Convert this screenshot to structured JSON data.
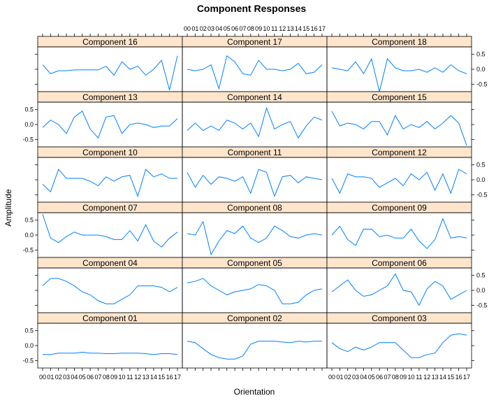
{
  "chart_data": {
    "type": "line",
    "title": "Component Responses",
    "xlabel": "Orientation",
    "ylabel": "Amplitude",
    "x": [
      "00",
      "01",
      "02",
      "03",
      "04",
      "05",
      "06",
      "07",
      "08",
      "09",
      "10",
      "11",
      "12",
      "13",
      "14",
      "15",
      "16",
      "17"
    ],
    "ylim": [
      -0.75,
      0.75
    ],
    "yticks": [
      -0.5,
      0.0,
      0.5
    ],
    "ytick_labels": [
      "-0.5",
      "0.0",
      "0.5"
    ],
    "layout_grid": "3 columns x 6 rows",
    "strip_color": "#ffe5cc",
    "line_color": "#0080ff",
    "series": [
      {
        "name": "Component 16",
        "values": [
          0.15,
          -0.15,
          -0.05,
          -0.05,
          -0.02,
          -0.02,
          -0.02,
          -0.02,
          0.1,
          -0.2,
          0.25,
          0.0,
          0.1,
          -0.2,
          0.0,
          0.3,
          -0.7,
          0.45
        ]
      },
      {
        "name": "Component 17",
        "values": [
          0.0,
          -0.05,
          0.0,
          0.15,
          -0.65,
          0.45,
          0.25,
          -0.15,
          -0.2,
          0.3,
          0.0,
          0.0,
          -0.05,
          0.0,
          0.2,
          -0.15,
          -0.1,
          0.15
        ]
      },
      {
        "name": "Component 18",
        "values": [
          0.05,
          0.0,
          -0.05,
          0.25,
          -0.15,
          0.35,
          -0.75,
          0.35,
          0.05,
          -0.05,
          -0.05,
          0.0,
          -0.1,
          0.05,
          -0.1,
          0.15,
          -0.05,
          -0.15
        ]
      },
      {
        "name": "Component 13",
        "values": [
          -0.1,
          0.15,
          0.0,
          -0.3,
          0.25,
          0.45,
          -0.15,
          -0.45,
          0.25,
          0.3,
          -0.3,
          0.0,
          0.05,
          0.0,
          -0.1,
          -0.05,
          -0.05,
          0.2
        ]
      },
      {
        "name": "Component 14",
        "values": [
          -0.2,
          0.05,
          -0.2,
          -0.05,
          -0.2,
          0.15,
          0.05,
          -0.15,
          0.05,
          -0.4,
          0.55,
          -0.15,
          0.0,
          0.1,
          -0.45,
          -0.05,
          0.25,
          0.15
        ]
      },
      {
        "name": "Component 15",
        "values": [
          0.45,
          -0.05,
          0.05,
          0.0,
          -0.15,
          0.1,
          0.1,
          -0.35,
          0.3,
          -0.15,
          0.0,
          -0.1,
          0.1,
          -0.15,
          0.05,
          0.3,
          0.05,
          -0.7
        ]
      },
      {
        "name": "Component 10",
        "values": [
          -0.15,
          -0.4,
          0.35,
          0.05,
          0.05,
          0.05,
          -0.05,
          -0.2,
          0.1,
          -0.05,
          0.1,
          0.15,
          -0.55,
          0.35,
          0.1,
          0.2,
          0.05,
          0.05
        ]
      },
      {
        "name": "Component 11",
        "values": [
          0.25,
          -0.25,
          0.15,
          -0.15,
          0.1,
          0.05,
          -0.05,
          0.1,
          -0.45,
          0.35,
          0.25,
          -0.55,
          0.1,
          0.15,
          -0.1,
          0.1,
          0.05,
          0.0
        ]
      },
      {
        "name": "Component 12",
        "values": [
          0.05,
          -0.45,
          0.2,
          0.1,
          0.1,
          0.05,
          -0.25,
          -0.1,
          0.05,
          -0.2,
          0.2,
          0.0,
          0.25,
          -0.35,
          0.2,
          -0.45,
          0.35,
          0.2
        ]
      },
      {
        "name": "Component 07",
        "values": [
          0.7,
          -0.1,
          -0.25,
          -0.05,
          0.1,
          0.0,
          0.0,
          0.0,
          -0.05,
          -0.15,
          -0.15,
          0.15,
          -0.2,
          0.35,
          -0.2,
          -0.4,
          -0.1,
          0.1
        ]
      },
      {
        "name": "Component 08",
        "values": [
          0.05,
          0.0,
          0.45,
          -0.65,
          -0.2,
          0.15,
          0.05,
          0.3,
          -0.1,
          -0.25,
          -0.1,
          0.3,
          0.15,
          -0.05,
          -0.1,
          0.0,
          0.05,
          0.0
        ]
      },
      {
        "name": "Component 09",
        "values": [
          0.0,
          0.3,
          -0.15,
          -0.35,
          0.2,
          0.2,
          -0.05,
          0.0,
          -0.1,
          -0.1,
          0.2,
          -0.2,
          -0.45,
          -0.15,
          0.55,
          -0.1,
          -0.05,
          -0.1
        ]
      },
      {
        "name": "Component 04",
        "values": [
          0.15,
          0.4,
          0.4,
          0.3,
          0.15,
          -0.05,
          -0.15,
          -0.35,
          -0.45,
          -0.45,
          -0.3,
          -0.15,
          0.15,
          0.15,
          0.15,
          0.1,
          -0.05,
          0.1
        ]
      },
      {
        "name": "Component 05",
        "values": [
          0.25,
          0.3,
          0.4,
          0.15,
          0.0,
          -0.15,
          -0.05,
          0.0,
          0.05,
          0.2,
          0.15,
          0.0,
          -0.45,
          -0.45,
          -0.4,
          -0.15,
          0.0,
          0.05
        ]
      },
      {
        "name": "Component 06",
        "values": [
          -0.05,
          0.15,
          0.35,
          0.0,
          -0.2,
          -0.15,
          0.0,
          0.15,
          0.55,
          0.0,
          -0.05,
          -0.5,
          0.05,
          0.3,
          0.15,
          -0.3,
          -0.15,
          0.0
        ]
      },
      {
        "name": "Component 01",
        "values": [
          -0.3,
          -0.3,
          -0.25,
          -0.25,
          -0.25,
          -0.22,
          -0.25,
          -0.25,
          -0.27,
          -0.27,
          -0.25,
          -0.25,
          -0.25,
          -0.27,
          -0.3,
          -0.27,
          -0.27,
          -0.3
        ]
      },
      {
        "name": "Component 02",
        "values": [
          0.15,
          0.1,
          -0.1,
          -0.3,
          -0.4,
          -0.45,
          -0.45,
          -0.35,
          0.05,
          0.15,
          0.15,
          0.15,
          0.12,
          0.1,
          0.15,
          0.12,
          0.15,
          0.15
        ]
      },
      {
        "name": "Component 03",
        "values": [
          0.1,
          -0.1,
          -0.2,
          -0.05,
          -0.15,
          -0.05,
          0.1,
          0.1,
          0.1,
          -0.15,
          -0.4,
          -0.4,
          -0.3,
          -0.25,
          0.1,
          0.35,
          0.4,
          0.35
        ]
      }
    ]
  }
}
